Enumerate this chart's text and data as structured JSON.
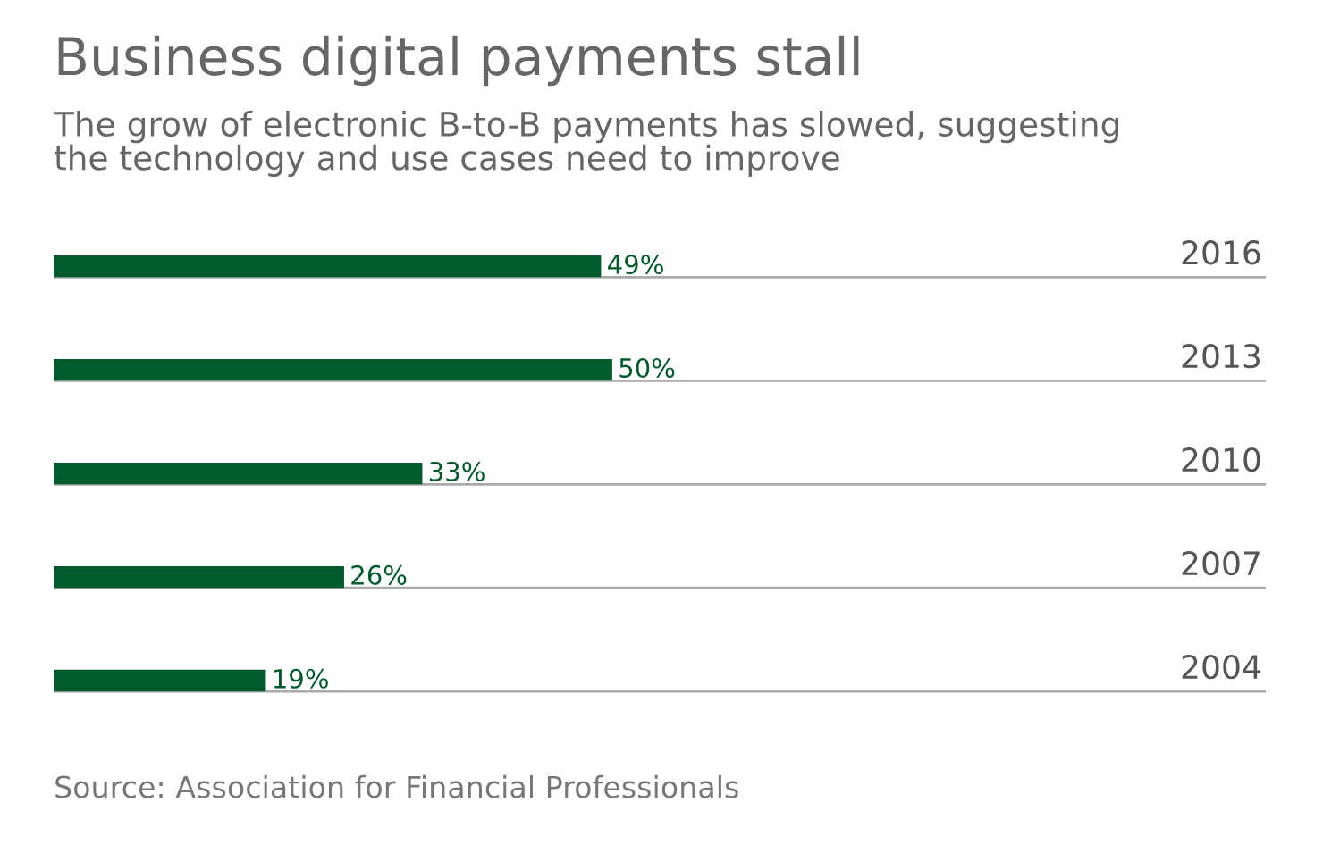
{
  "chart_data": {
    "type": "bar",
    "orientation": "horizontal",
    "title": "Business digital payments stall",
    "subtitle": "The grow of electronic B-to-B payments has slowed, suggesting\nthe technology and use cases need to improve",
    "categories": [
      "2016",
      "2013",
      "2010",
      "2007",
      "2004"
    ],
    "values": [
      49,
      50,
      33,
      26,
      19
    ],
    "value_labels": [
      "49%",
      "50%",
      "33%",
      "26%",
      "19%"
    ],
    "color": "#005a2b",
    "grid": "y",
    "annotations": [
      "Source: Association for Financial Professionals"
    ]
  }
}
